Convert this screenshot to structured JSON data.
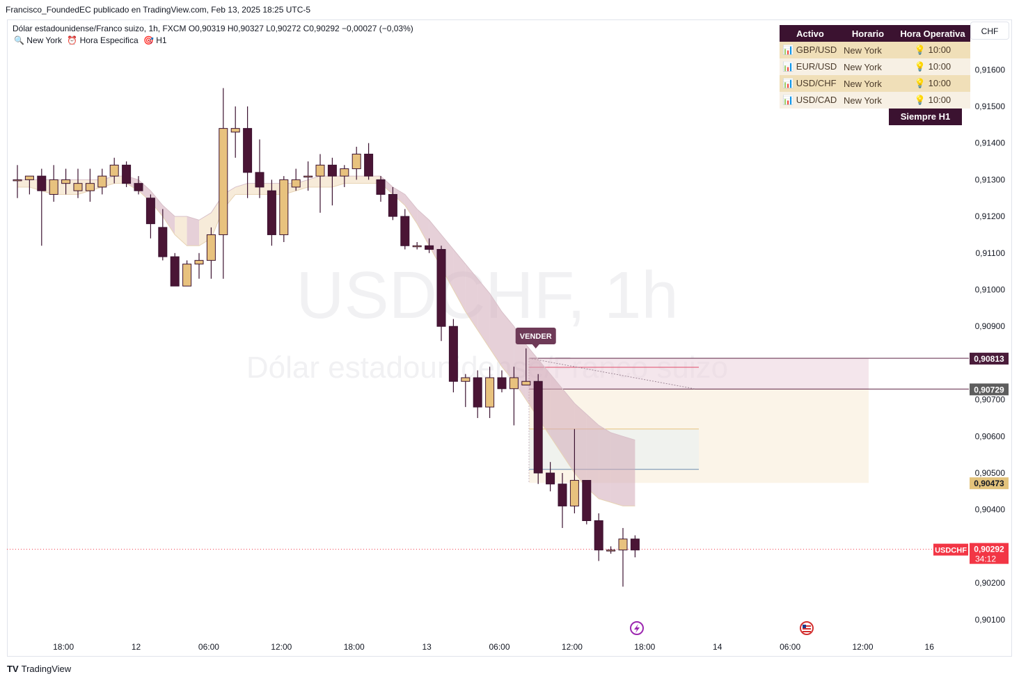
{
  "header": {
    "published": "Francisco_FoundedEC publicado en TradingView.com, Feb 13, 2025 18:25 UTC-5",
    "symbol_desc": "Dólar estadounidense/Franco suizo, 1h, FXCM",
    "ohlc": "O0,90319 H0,90327 L0,90272 C0,90292 −0,00027 (−0,03%)",
    "indicators": [
      "🔍 New York",
      "⏰ Hora Especifica",
      "🎯 H1"
    ],
    "currency": "CHF"
  },
  "watermark": {
    "symbol": "USDCHF, 1h",
    "desc": "Dólar estadounidense/Franco suizo"
  },
  "table": {
    "headers": [
      "Activo",
      "Horario",
      "Hora Operativa"
    ],
    "rows": [
      {
        "asset": "📊 GBP/USD",
        "session": "New York",
        "time": "💡 10:00"
      },
      {
        "asset": "📊 EUR/USD",
        "session": "New York",
        "time": "💡 10:00"
      },
      {
        "asset": "📊 USD/CHF",
        "session": "New York",
        "time": "💡 10:00"
      },
      {
        "asset": "📊 USD/CAD",
        "session": "New York",
        "time": "💡 10:00"
      }
    ],
    "footer": "Siempre H1"
  },
  "annotations": {
    "sell_label": "VENDER",
    "symbol_tag": "USDCHF",
    "countdown": "34:12"
  },
  "price_tags": [
    {
      "label": "0,90813",
      "value": 0.90813,
      "bg": "#4a1c3a"
    },
    {
      "label": "0,90729",
      "value": 0.90729,
      "bg": "#5d5d5d"
    },
    {
      "label": "0,90473",
      "value": 0.90473,
      "bg": "#e3c37c"
    },
    {
      "label": "0,90292",
      "value": 0.90292,
      "bg": "#f23645"
    }
  ],
  "brand": {
    "name": "TradingView"
  },
  "colors": {
    "up": "#e8c27e",
    "down": "#4a1535",
    "upBorder": "#3b1230",
    "wick": "#3b1230"
  },
  "chart_data": {
    "type": "candlestick",
    "symbol": "USDCHF",
    "timeframe": "1h",
    "ylim": [
      0.9008,
      0.917
    ],
    "y_ticks": [
      "0,91600",
      "0,91500",
      "0,91400",
      "0,91300",
      "0,91200",
      "0,91100",
      "0,91000",
      "0,90900",
      "0,90700",
      "0,90600",
      "0,90500",
      "0,90400",
      "0,90200",
      "0,90100"
    ],
    "y_tick_values": [
      0.916,
      0.915,
      0.914,
      0.913,
      0.912,
      0.911,
      0.91,
      0.909,
      0.907,
      0.906,
      0.905,
      0.904,
      0.902,
      0.901
    ],
    "x_ticks": [
      "18:00",
      "12",
      "06:00",
      "12:00",
      "18:00",
      "13",
      "06:00",
      "12:00",
      "18:00",
      "14",
      "06:00",
      "12:00",
      "16"
    ],
    "x_tick_index": [
      3.8,
      9.8,
      15.8,
      21.8,
      27.8,
      33.8,
      39.8,
      45.8,
      51.8,
      57.8,
      63.8,
      69.8,
      75.3
    ],
    "candles": [
      [
        0.913,
        0.9134,
        0.9125,
        0.913
      ],
      [
        0.913,
        0.9131,
        0.9126,
        0.9131
      ],
      [
        0.9131,
        0.9133,
        0.9112,
        0.9127
      ],
      [
        0.9126,
        0.9134,
        0.9124,
        0.913
      ],
      [
        0.9129,
        0.9133,
        0.9126,
        0.913
      ],
      [
        0.9127,
        0.9133,
        0.9125,
        0.9129
      ],
      [
        0.9127,
        0.9133,
        0.9124,
        0.9129
      ],
      [
        0.9128,
        0.9133,
        0.9126,
        0.9131
      ],
      [
        0.9131,
        0.9136,
        0.9129,
        0.9134
      ],
      [
        0.9134,
        0.9135,
        0.9128,
        0.9129
      ],
      [
        0.9129,
        0.9131,
        0.9126,
        0.9127
      ],
      [
        0.9125,
        0.9126,
        0.9114,
        0.9118
      ],
      [
        0.9117,
        0.9122,
        0.9108,
        0.9109
      ],
      [
        0.9109,
        0.911,
        0.9102,
        0.9101
      ],
      [
        0.9101,
        0.9108,
        0.9102,
        0.9107
      ],
      [
        0.9107,
        0.911,
        0.9103,
        0.9108
      ],
      [
        0.9108,
        0.9117,
        0.9103,
        0.9115
      ],
      [
        0.9115,
        0.9155,
        0.9103,
        0.9144
      ],
      [
        0.9143,
        0.915,
        0.9136,
        0.9144
      ],
      [
        0.9144,
        0.915,
        0.9125,
        0.9132
      ],
      [
        0.9132,
        0.9141,
        0.9125,
        0.9128
      ],
      [
        0.9127,
        0.913,
        0.9112,
        0.9115
      ],
      [
        0.9115,
        0.9131,
        0.9113,
        0.913
      ],
      [
        0.9128,
        0.9133,
        0.9127,
        0.913
      ],
      [
        0.9131,
        0.9135,
        0.9127,
        0.9131
      ],
      [
        0.9131,
        0.9137,
        0.9121,
        0.9134
      ],
      [
        0.9134,
        0.9136,
        0.9123,
        0.9131
      ],
      [
        0.9131,
        0.9134,
        0.9128,
        0.9133
      ],
      [
        0.9133,
        0.9139,
        0.913,
        0.9137
      ],
      [
        0.9137,
        0.914,
        0.913,
        0.9131
      ],
      [
        0.913,
        0.9131,
        0.9124,
        0.9126
      ],
      [
        0.9126,
        0.9128,
        0.9119,
        0.912
      ],
      [
        0.912,
        0.9122,
        0.9111,
        0.9112
      ],
      [
        0.9112,
        0.9113,
        0.9111,
        0.9112
      ],
      [
        0.9112,
        0.9114,
        0.911,
        0.9111
      ],
      [
        0.9111,
        0.9112,
        0.9086,
        0.909
      ],
      [
        0.909,
        0.9092,
        0.9072,
        0.9075
      ],
      [
        0.9075,
        0.9077,
        0.9068,
        0.9076
      ],
      [
        0.9076,
        0.9078,
        0.9065,
        0.9068
      ],
      [
        0.9068,
        0.9079,
        0.9065,
        0.9076
      ],
      [
        0.9076,
        0.9078,
        0.9072,
        0.9073
      ],
      [
        0.9073,
        0.9079,
        0.9063,
        0.9076
      ],
      [
        0.9074,
        0.9084,
        0.9074,
        0.9075
      ],
      [
        0.9075,
        0.9077,
        0.9047,
        0.905
      ],
      [
        0.905,
        0.9053,
        0.9045,
        0.9047
      ],
      [
        0.9047,
        0.905,
        0.9035,
        0.9041
      ],
      [
        0.9041,
        0.9062,
        0.9039,
        0.9048
      ],
      [
        0.9048,
        0.9048,
        0.9036,
        0.9037
      ],
      [
        0.9037,
        0.9039,
        0.9026,
        0.9029
      ],
      [
        0.9029,
        0.903,
        0.9028,
        0.9029
      ],
      [
        0.9029,
        0.9035,
        0.9019,
        0.9032
      ],
      [
        0.9032,
        0.9033,
        0.9027,
        0.9029
      ]
    ],
    "ema_band": [
      [
        0.913,
        0.9128
      ],
      [
        0.913,
        0.9128
      ],
      [
        0.913,
        0.9127
      ],
      [
        0.913,
        0.9126
      ],
      [
        0.913,
        0.9126
      ],
      [
        0.913,
        0.9126
      ],
      [
        0.913,
        0.9127
      ],
      [
        0.913,
        0.9128
      ],
      [
        0.9131,
        0.9129
      ],
      [
        0.9131,
        0.9129
      ],
      [
        0.913,
        0.9127
      ],
      [
        0.9127,
        0.9124
      ],
      [
        0.9123,
        0.912
      ],
      [
        0.912,
        0.9115
      ],
      [
        0.912,
        0.9112
      ],
      [
        0.9119,
        0.9112
      ],
      [
        0.9121,
        0.9114
      ],
      [
        0.9126,
        0.9122
      ],
      [
        0.9128,
        0.9126
      ],
      [
        0.9129,
        0.9126
      ],
      [
        0.9129,
        0.9126
      ],
      [
        0.9129,
        0.9126
      ],
      [
        0.9129,
        0.9126
      ],
      [
        0.9129,
        0.9127
      ],
      [
        0.913,
        0.9128
      ],
      [
        0.9131,
        0.9128
      ],
      [
        0.9131,
        0.9128
      ],
      [
        0.9131,
        0.9129
      ],
      [
        0.9131,
        0.9129
      ],
      [
        0.9131,
        0.9129
      ],
      [
        0.9131,
        0.9129
      ],
      [
        0.9128,
        0.9126
      ],
      [
        0.9126,
        0.9123
      ],
      [
        0.9122,
        0.9118
      ],
      [
        0.9119,
        0.9112
      ],
      [
        0.9115,
        0.9106
      ],
      [
        0.9111,
        0.91
      ],
      [
        0.9107,
        0.9094
      ],
      [
        0.9103,
        0.9089
      ],
      [
        0.9099,
        0.9084
      ],
      [
        0.9094,
        0.9079
      ],
      [
        0.909,
        0.9075
      ],
      [
        0.9085,
        0.907
      ],
      [
        0.9081,
        0.9065
      ],
      [
        0.9077,
        0.906
      ],
      [
        0.9073,
        0.9055
      ],
      [
        0.9069,
        0.905
      ],
      [
        0.9066,
        0.9046
      ],
      [
        0.9063,
        0.9043
      ],
      [
        0.9061,
        0.9042
      ],
      [
        0.906,
        0.9041
      ],
      [
        0.9059,
        0.9041
      ]
    ],
    "sell_zone": {
      "entry": 0.90729,
      "stop": 0.90813,
      "tp_region": [
        0.90473,
        0.90729
      ]
    },
    "inner_levels": [
      0.9062,
      0.9051
    ],
    "current_price": 0.90292
  }
}
